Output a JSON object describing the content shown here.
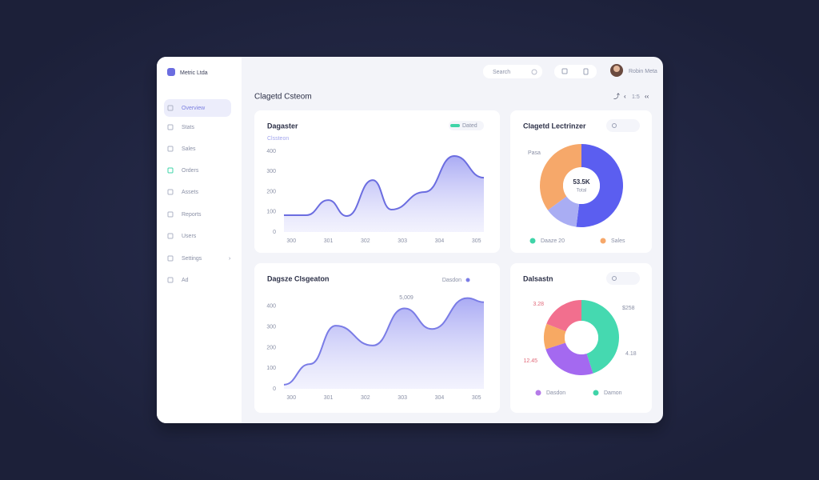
{
  "app": {
    "brand": "Metric Ltda",
    "nav": [
      "Overview",
      "Stats",
      "Sales",
      "Orders",
      "Assets",
      "Reports",
      "Users",
      "Settings",
      "Ad"
    ]
  },
  "header": {
    "search": "Search",
    "user": "Robin Meta",
    "page_title": "Clagetd Csteom",
    "controls": "1:5"
  },
  "chart_data": [
    {
      "type": "area",
      "title": "Dagaster",
      "subtitle": "Clssteon",
      "x": [
        299.8,
        300.4,
        301.0,
        301.5,
        302.2,
        302.7,
        303.6,
        304.4,
        305.2
      ],
      "series": [
        {
          "name": "Dated",
          "color": "#6b6de0",
          "values": [
            83,
            83,
            158,
            79,
            257,
            111,
            198,
            376,
            269
          ]
        }
      ],
      "legend_swatch_color": "#3fd4a8",
      "xlim": [
        299.8,
        305.2
      ],
      "xticks": [
        300,
        301,
        302,
        303,
        304,
        305
      ],
      "ylim": [
        0,
        400
      ],
      "yticks": [
        0,
        100,
        200,
        300,
        400
      ]
    },
    {
      "type": "donut",
      "title": "Clagetd Lectrinzer",
      "values": [
        52,
        13,
        35
      ],
      "colors": [
        "#5b5ef0",
        "#a9adf3",
        "#f6a86a"
      ],
      "center_label": "53.5K",
      "center_sublabel": "Total",
      "legend": [
        {
          "name": "Daaze 20",
          "color": "#3fd4a8"
        },
        {
          "name": "Sales",
          "color": "#f6a86a"
        }
      ],
      "annotations": [
        {
          "text": "Pasa",
          "color": "#8a90a6"
        }
      ]
    },
    {
      "type": "area",
      "title": "Dagsze Clsgeaton",
      "x": [
        299.8,
        300.5,
        301.2,
        302.2,
        303.05,
        303.8,
        304.75,
        305.2
      ],
      "series": [
        {
          "name": "Dasdon",
          "color": "#7a7ce6",
          "values": [
            20,
            120,
            306,
            210,
            390,
            290,
            440,
            420
          ]
        }
      ],
      "xlim": [
        299.8,
        305.2
      ],
      "xticks": [
        300,
        301,
        302,
        303,
        304,
        305
      ],
      "ylim": [
        0,
        450
      ],
      "yticks": [
        0,
        100,
        200,
        300,
        400
      ],
      "annotations": [
        {
          "text": "5,009",
          "color": "#8a90a6"
        }
      ]
    },
    {
      "type": "donut",
      "title": "Dalsastn",
      "values": [
        45,
        25,
        11,
        19
      ],
      "colors": [
        "#45d9b0",
        "#a469f0",
        "#f7a963",
        "#f26f8e"
      ],
      "legend": [
        {
          "name": "Dasdon",
          "color": "#b57be8"
        },
        {
          "name": "Damon",
          "color": "#3fd4a8"
        }
      ],
      "annotations": [
        {
          "text": "$258",
          "color": "#8a90a6"
        },
        {
          "text": "4.18",
          "color": "#8a90a6"
        },
        {
          "text": "12.45",
          "color": "#e26a7a"
        },
        {
          "text": "3.28",
          "color": "#e26a7a"
        }
      ]
    }
  ]
}
